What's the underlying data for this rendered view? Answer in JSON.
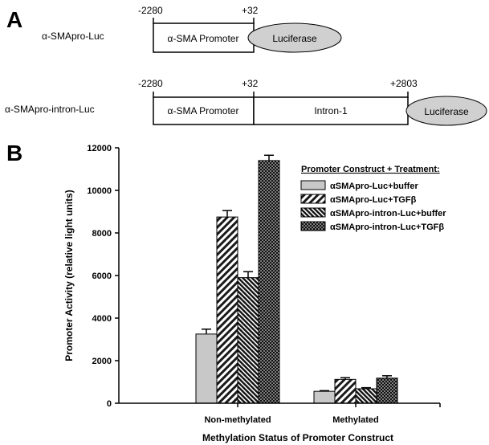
{
  "panel_a": {
    "letter": "A",
    "constructs": [
      {
        "name": "α-SMApro-Luc",
        "positions": [
          "-2280",
          "+32"
        ],
        "promoter_label": "α-SMA Promoter",
        "reporter_label": "Luciferase"
      },
      {
        "name": "α-SMApro-intron-Luc",
        "positions": [
          "-2280",
          "+32",
          "+2803"
        ],
        "promoter_label": "α-SMA Promoter",
        "intron_label": "Intron-1",
        "reporter_label": "Luciferase"
      }
    ]
  },
  "panel_b": {
    "letter": "B"
  },
  "chart_data": {
    "type": "bar",
    "xlabel": "Methylation Status of Promoter Construct",
    "ylabel": "Promoter Activity (relative light units)",
    "ylim": [
      0,
      12000
    ],
    "yticks": [
      "0",
      "2000",
      "4000",
      "6000",
      "8000",
      "10000",
      "12000"
    ],
    "categories": [
      "Non-methylated",
      "Methylated"
    ],
    "legend_title": "Promoter Construct + Treatment:",
    "legend_position": "top-right",
    "grid": false,
    "series": [
      {
        "name": "αSMApro-Luc+buffer",
        "values": [
          3250,
          560
        ],
        "errors": [
          230,
          30
        ],
        "fill": "light-gray"
      },
      {
        "name": "αSMApro-Luc+TGFβ",
        "values": [
          8750,
          1120
        ],
        "errors": [
          300,
          80
        ],
        "fill": "diagonal-hatch"
      },
      {
        "name": "αSMApro-intron-Luc+buffer",
        "values": [
          5900,
          680
        ],
        "errors": [
          280,
          50
        ],
        "fill": "dense-diagonal-hatch"
      },
      {
        "name": "αSMApro-intron-Luc+TGFβ",
        "values": [
          11400,
          1180
        ],
        "errors": [
          250,
          110
        ],
        "fill": "dotted"
      }
    ]
  }
}
